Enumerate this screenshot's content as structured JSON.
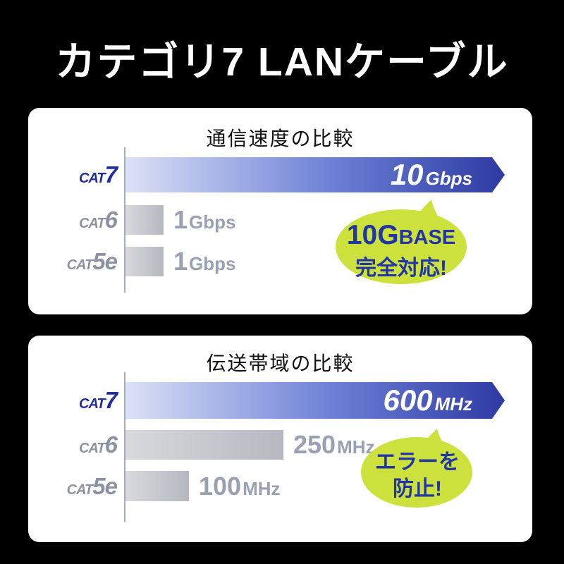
{
  "page": {
    "title": "カテゴリ7 LANケーブル",
    "background": "#000000"
  },
  "colors": {
    "panel_bg": "#ffffff",
    "title_text": "#ffffff",
    "header_text": "#111111",
    "bar_blue_start": "#dbe1f6",
    "bar_blue_mid": "#6b7fd6",
    "bar_blue_end": "#2e3aa3",
    "bar_gray_start": "#d7d9dd",
    "bar_gray_end": "#b5b8c0",
    "cat7_label": "#222e9c",
    "gray_label": "#8c92a0",
    "value_gray_text": "#99a1b0",
    "in_bar_text": "#ffffff",
    "bubble_fill": "#cde13d",
    "bubble_text": "#2135a6",
    "axis": "#a6abb5"
  },
  "panels": [
    {
      "header": "通信速度の比較",
      "rows": [
        {
          "label_prefix": "CAT",
          "label_suffix": "7",
          "value": "10",
          "unit": "Gbps"
        },
        {
          "label_prefix": "CAT",
          "label_suffix": "6",
          "value": "1",
          "unit": "Gbps"
        },
        {
          "label_prefix": "CAT",
          "label_suffix": "5e",
          "value": "1",
          "unit": "Gbps"
        }
      ],
      "bubble": {
        "line1_big": "10G",
        "line1_small": "BASE",
        "line2": "完全対応!"
      }
    },
    {
      "header": "伝送帯域の比較",
      "rows": [
        {
          "label_prefix": "CAT",
          "label_suffix": "7",
          "value": "600",
          "unit": "MHz"
        },
        {
          "label_prefix": "CAT",
          "label_suffix": "6",
          "value": "250",
          "unit": "MHz"
        },
        {
          "label_prefix": "CAT",
          "label_suffix": "5e",
          "value": "100",
          "unit": "MHz"
        }
      ],
      "bubble": {
        "line1": "エラーを",
        "line2": "防止!"
      }
    }
  ],
  "chart_data": [
    {
      "type": "bar",
      "orientation": "horizontal",
      "title": "通信速度の比較",
      "categories": [
        "CAT7",
        "CAT6",
        "CAT5e"
      ],
      "values": [
        10,
        1,
        1
      ],
      "unit": "Gbps",
      "value_labels": [
        "10Gbps",
        "1Gbps",
        "1Gbps"
      ],
      "xlim": [
        0,
        10
      ],
      "grid": false,
      "highlight_category": "CAT7",
      "annotation": "10GBASE 完全対応!"
    },
    {
      "type": "bar",
      "orientation": "horizontal",
      "title": "伝送帯域の比較",
      "categories": [
        "CAT7",
        "CAT6",
        "CAT5e"
      ],
      "values": [
        600,
        250,
        100
      ],
      "unit": "MHz",
      "value_labels": [
        "600MHz",
        "250MHz",
        "100MHz"
      ],
      "xlim": [
        0,
        600
      ],
      "grid": false,
      "highlight_category": "CAT7",
      "annotation": "エラーを防止!"
    }
  ]
}
